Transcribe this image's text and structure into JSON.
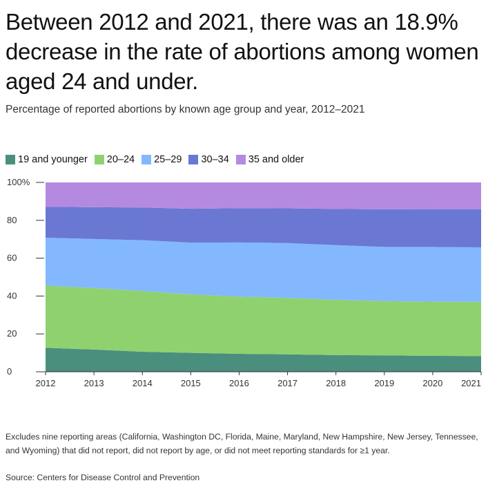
{
  "header": {
    "title": "Between 2012 and 2021, there was an 18.9% decrease in the rate of abortions among women aged 24 and under.",
    "subtitle": "Percentage of reported abortions by known age group and year, 2012–2021"
  },
  "footer": {
    "footnote": "Excludes nine reporting areas (California, Washington DC, Florida, Maine, Maryland, New Hampshire, New Jersey, Tennessee, and Wyoming) that did not report, did not report by age, or did not meet reporting standards for ≥1 year.",
    "source": "Source: Centers for Disease Control and Prevention"
  },
  "chart_data": {
    "type": "area",
    "stacked": true,
    "title": "",
    "xlabel": "",
    "ylabel": "",
    "x": [
      2012,
      2013,
      2014,
      2015,
      2016,
      2017,
      2018,
      2019,
      2020,
      2021
    ],
    "ylim": [
      0,
      100
    ],
    "yticks": [
      0,
      20,
      40,
      60,
      80,
      100
    ],
    "ytick_labels": [
      "0",
      "20",
      "40",
      "60",
      "80",
      "100%"
    ],
    "legend_position": "top-left",
    "grid": false,
    "series": [
      {
        "name": "19 and younger",
        "color": "#4a8f7d",
        "values": [
          12.7,
          11.7,
          10.6,
          10.0,
          9.5,
          9.2,
          8.8,
          8.7,
          8.4,
          8.3
        ]
      },
      {
        "name": "20–24",
        "color": "#8fd16f",
        "values": [
          32.8,
          32.5,
          32.1,
          30.9,
          30.2,
          29.8,
          29.2,
          28.6,
          28.6,
          28.6
        ]
      },
      {
        "name": "25–29",
        "color": "#83b8ff",
        "values": [
          25.3,
          25.9,
          26.8,
          27.3,
          28.6,
          29.0,
          28.9,
          28.6,
          28.9,
          28.8
        ]
      },
      {
        "name": "30–34",
        "color": "#6a78d3",
        "values": [
          16.4,
          16.8,
          17.3,
          17.9,
          18.1,
          18.3,
          19.1,
          19.9,
          20.0,
          20.2
        ]
      },
      {
        "name": "35 and older",
        "color": "#b48ae0",
        "values": [
          12.8,
          13.1,
          13.2,
          13.9,
          13.6,
          13.7,
          14.0,
          14.2,
          14.1,
          14.1
        ]
      }
    ]
  }
}
